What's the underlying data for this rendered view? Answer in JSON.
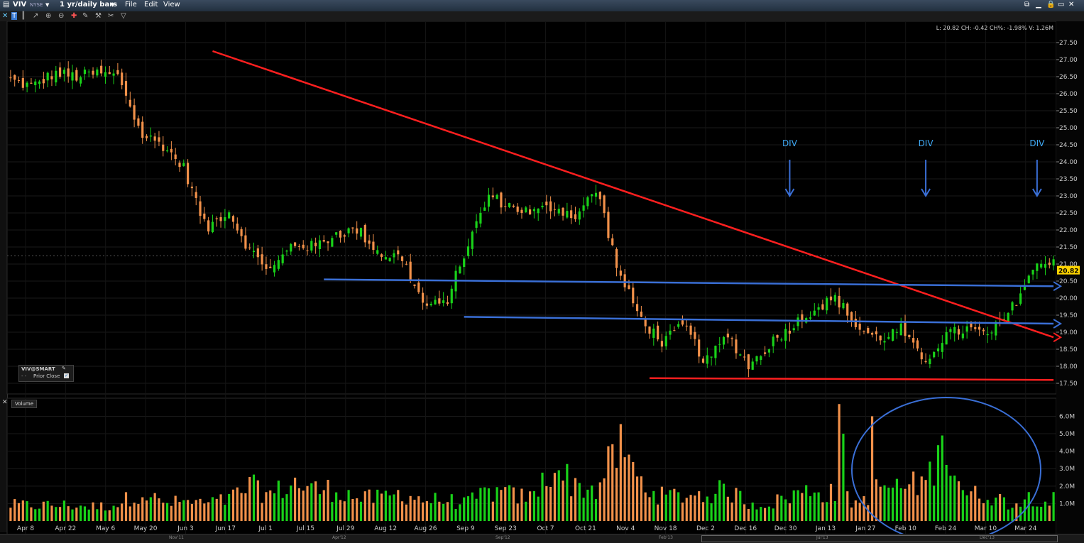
{
  "window": {
    "symbol": "VIV",
    "exchange": "NYSE",
    "period": "1 yr/daily bars",
    "menu": [
      "File",
      "Edit",
      "View"
    ]
  },
  "quote_line": "L: 20.82 CH: -0.42 CH%: -1.98% V: 1.26M",
  "legend": {
    "title": "VIV@SMART",
    "item": "Prior Close"
  },
  "volume_tab": "Volume",
  "annotations": [
    "DIV",
    "DIV",
    "DIV"
  ],
  "overview_labels": [
    "Nov'11",
    "Apr'12",
    "Sep'12",
    "Feb'13",
    "Jul'13",
    "Dec'13"
  ],
  "colors": {
    "up": "#19d219",
    "down": "#f2914a",
    "trend": "#ff1f1f",
    "support": "#3a6fd6",
    "annotation": "#3fa9f5",
    "last_price_bg": "#ffd400"
  },
  "chart_data": {
    "type": "candlestick",
    "x_tick_labels": [
      "Apr 8",
      "Apr 22",
      "May 6",
      "May 20",
      "Jun 3",
      "Jun 17",
      "Jul 1",
      "Jul 15",
      "Jul 29",
      "Aug 12",
      "Aug 26",
      "Sep 9",
      "Sep 23",
      "Oct 7",
      "Oct 21",
      "Nov 4",
      "Nov 18",
      "Dec 2",
      "Dec 16",
      "Dec 30",
      "Jan 13",
      "Jan 27",
      "Feb 10",
      "Feb 24",
      "Mar 10",
      "Mar 24"
    ],
    "price_axis": {
      "ticks": [
        27.5,
        27,
        26.5,
        26,
        25.5,
        25,
        24.5,
        24,
        23.5,
        23,
        22.5,
        22,
        21.5,
        21,
        20.5,
        20,
        19.5,
        19,
        18.5,
        18,
        17.5
      ],
      "tick_labels": [
        "27.50",
        "27.00",
        "26.50",
        "26.00",
        "25.50",
        "25.00",
        "24.50",
        "24.00",
        "23.50",
        "23.00",
        "22.50",
        "22.00",
        "21.50",
        "21.00",
        "20.50",
        "20.00",
        "19.50",
        "19.00",
        "18.50",
        "18.00",
        "17.50"
      ],
      "last_price": "20.82"
    },
    "volume_axis": {
      "ticks": [
        6,
        5,
        4,
        3,
        2,
        1
      ],
      "tick_labels": [
        "6.0M",
        "5.0M",
        "4.0M",
        "3.0M",
        "2.0M",
        "1.0M"
      ]
    },
    "close_anchors": [
      26.4,
      26.2,
      26.6,
      26.5,
      26.6,
      26.5,
      24.8,
      24.5,
      23.8,
      22.0,
      22.6,
      21.4,
      20.8,
      21.6,
      21.5,
      21.9,
      22.0,
      21.3,
      21.2,
      19.8,
      19.8,
      21.5,
      23.0,
      22.7,
      22.5,
      22.7,
      22.4,
      23.2,
      20.7,
      19.4,
      18.7,
      19.2,
      18.1,
      18.9,
      18.0,
      18.7,
      19.2,
      19.7,
      20.0,
      19.1,
      18.8,
      19.1,
      18.1,
      18.9,
      19.1,
      18.9,
      19.6,
      20.8,
      21.2
    ],
    "volume_anchors": [
      0.9,
      0.9,
      0.9,
      0.9,
      0.8,
      1.0,
      1.7,
      1.0,
      1.1,
      1.0,
      1.2,
      2.0,
      1.5,
      2.2,
      1.8,
      1.8,
      1.3,
      1.3,
      1.6,
      1.2,
      1.2,
      1.0,
      1.7,
      1.5,
      1.3,
      3.2,
      2.0,
      1.8,
      4.3,
      2.2,
      1.4,
      1.5,
      1.5,
      1.8,
      1.0,
      1.0,
      1.5,
      1.8,
      1.5,
      1.0,
      2.0,
      1.9,
      2.2,
      4.0,
      1.5,
      1.5,
      1.0,
      1.4,
      1.2
    ],
    "big_volume_bars": [
      {
        "day": 201,
        "value": 6.7
      },
      {
        "day": 202,
        "value": 5.0
      },
      {
        "day": 209,
        "value": 6.0
      },
      {
        "day": 223,
        "value": 3.4
      },
      {
        "day": 226,
        "value": 4.9
      }
    ],
    "div_days": [
      189,
      222,
      249
    ],
    "trendlines": [
      {
        "name": "falling-resistance",
        "color": "red",
        "from": {
          "day": 49,
          "price": 27.25
        },
        "to": {
          "day": 253,
          "price": 18.85
        }
      },
      {
        "name": "bottom-support",
        "color": "red",
        "from": {
          "day": 155,
          "price": 17.65
        },
        "to": {
          "day": 253,
          "price": 17.6
        }
      },
      {
        "name": "upper-support",
        "color": "blue",
        "from": {
          "day": 76,
          "price": 20.55
        },
        "to": {
          "day": 253,
          "price": 20.35
        }
      },
      {
        "name": "lower-support",
        "color": "blue",
        "from": {
          "day": 110,
          "price": 19.45
        },
        "to": {
          "day": 253,
          "price": 19.25
        }
      }
    ]
  }
}
